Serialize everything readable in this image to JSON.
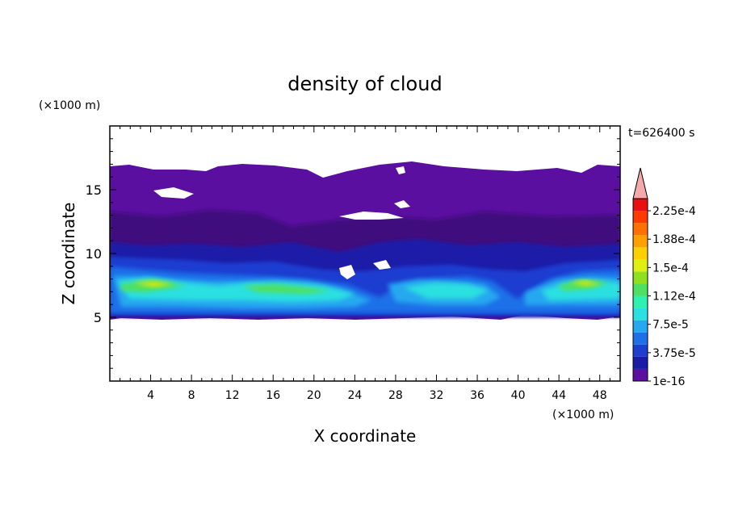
{
  "chart_data": {
    "type": "heatmap",
    "title": "density of cloud",
    "xlabel": "X coordinate",
    "ylabel": "Z coordinate",
    "x_unit": "(×1000 m)",
    "y_unit": "(×1000 m)",
    "time_label": "t=626400 s",
    "xlim": [
      0,
      50
    ],
    "ylim": [
      0,
      20
    ],
    "x_ticks": [
      "4",
      "8",
      "12",
      "16",
      "20",
      "24",
      "28",
      "32",
      "36",
      "40",
      "44",
      "48"
    ],
    "y_ticks": [
      "5",
      "10",
      "15"
    ],
    "colorbar": {
      "labels": [
        "1e-16",
        "3.75e-5",
        "7.5e-5",
        "1.12e-4",
        "1.5e-4",
        "1.88e-4",
        "2.25e-4"
      ],
      "colors": [
        "#5a0fa0",
        "#1b1ba8",
        "#1e3ed0",
        "#1f6fe8",
        "#25a8f0",
        "#2be0e0",
        "#2ef0b0",
        "#4fe060",
        "#8fe020",
        "#dfef10",
        "#ffd000",
        "#ffa000",
        "#ff7000",
        "#ff3a00",
        "#e81010"
      ],
      "over_color": "#f4aaaa"
    },
    "field_description": "cloud density layer between z≈5 and z≈17 (×1000 m); upper part low density (purple), dense bands near z≈6–8 with peaks around x≈6, 20 and 46"
  }
}
